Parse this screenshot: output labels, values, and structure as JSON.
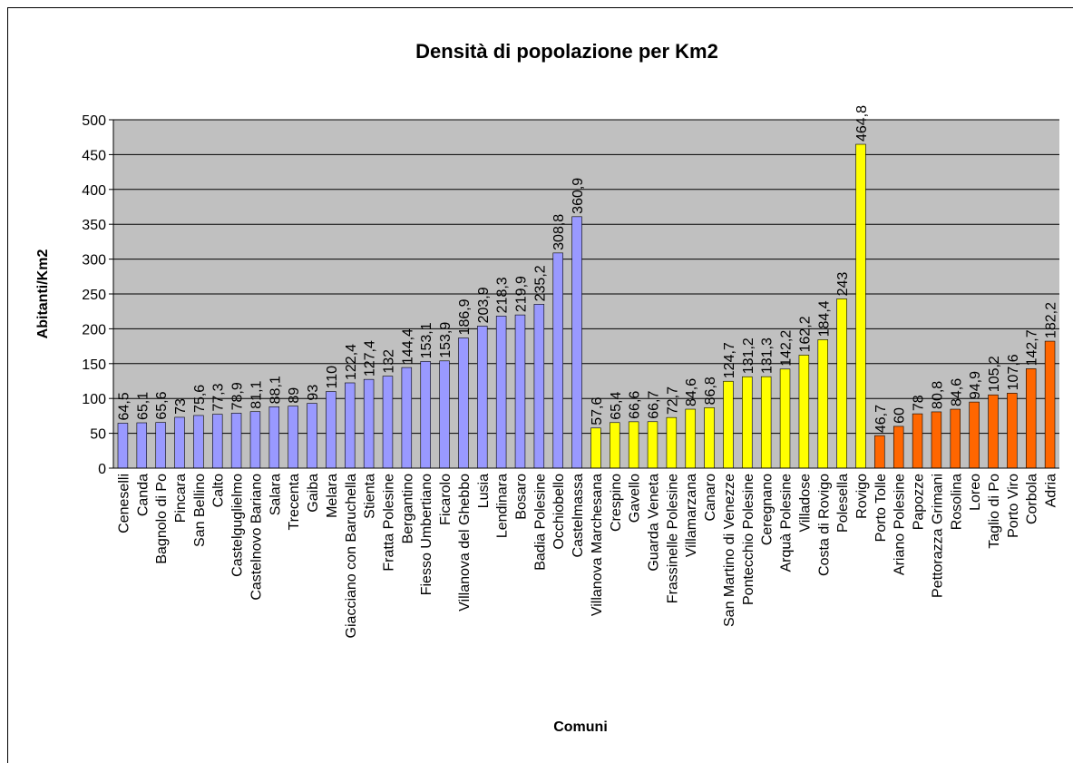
{
  "chart_data": {
    "type": "bar",
    "title": "Densità di popolazione per Km2",
    "y_label": "Abitanti/Km2",
    "x_label": "Comuni",
    "categories": [
      "Ceneselli",
      "Canda",
      "Bagnolo di Po",
      "Pincara",
      "San Bellino",
      "Calto",
      "Castelguglielmo",
      "Castelnovo Bariano",
      "Salara",
      "Trecenta",
      "Gaiba",
      "Melara",
      "Giacciano con Baruchella",
      "Stienta",
      "Fratta Polesine",
      "Bergantino",
      "Fiesso Umbertiano",
      "Ficarolo",
      "Villanova del Ghebbo",
      "Lusia",
      "Lendinara",
      "Bosaro",
      "Badia Polesine",
      "Occhiobello",
      "Castelmassa",
      "Villanova Marchesana",
      "Crespino",
      "Gavello",
      "Guarda Veneta",
      "Frassinelle Polesine",
      "Villamarzana",
      "Canaro",
      "San Martino di Venezze",
      "Pontecchio Polesine",
      "Ceregnano",
      "Arquà Polesine",
      "Villadose",
      "Costa di Rovigo",
      "Polesella",
      "Rovigo",
      "Porto Tolle",
      "Ariano Polesine",
      "Papozze",
      "Pettorazza Grimani",
      "Rosolina",
      "Loreo",
      "Taglio di Po",
      "Porto Viro",
      "Corbola",
      "Adria"
    ],
    "values": [
      64.5,
      65.1,
      65.6,
      73,
      75.6,
      77.3,
      78.9,
      81.1,
      88.1,
      89,
      93,
      110,
      122.4,
      127.4,
      132,
      144.4,
      153.1,
      153.9,
      186.9,
      203.9,
      218.3,
      219.9,
      235.2,
      308.8,
      360.9,
      57.6,
      65.4,
      66.6,
      66.7,
      72.7,
      84.6,
      86.8,
      124.7,
      131.2,
      131.3,
      142.2,
      162.2,
      184.4,
      243,
      464.8,
      46.7,
      60,
      78,
      80.8,
      84.6,
      94.9,
      105.2,
      107.6,
      142.7,
      182.2
    ],
    "value_labels": [
      "64,5",
      "65,1",
      "65,6",
      "73",
      "75,6",
      "77,3",
      "78,9",
      "81,1",
      "88,1",
      "89",
      "93",
      "110",
      "122,4",
      "127,4",
      "132",
      "144,4",
      "153,1",
      "153,9",
      "186,9",
      "203,9",
      "218,3",
      "219,9",
      "235,2",
      "308,8",
      "360,9",
      "57,6",
      "65,4",
      "66,6",
      "66,7",
      "72,7",
      "84,6",
      "86,8",
      "124,7",
      "131,2",
      "131,3",
      "142,2",
      "162,2",
      "184,4",
      "243",
      "464,8",
      "46,7",
      "60",
      "78",
      "80,8",
      "84,6",
      "94,9",
      "105,2",
      "107,6",
      "142,7",
      "182,2"
    ],
    "colors": [
      "#9999ff",
      "#9999ff",
      "#9999ff",
      "#9999ff",
      "#9999ff",
      "#9999ff",
      "#9999ff",
      "#9999ff",
      "#9999ff",
      "#9999ff",
      "#9999ff",
      "#9999ff",
      "#9999ff",
      "#9999ff",
      "#9999ff",
      "#9999ff",
      "#9999ff",
      "#9999ff",
      "#9999ff",
      "#9999ff",
      "#9999ff",
      "#9999ff",
      "#9999ff",
      "#9999ff",
      "#9999ff",
      "#ffff00",
      "#ffff00",
      "#ffff00",
      "#ffff00",
      "#ffff00",
      "#ffff00",
      "#ffff00",
      "#ffff00",
      "#ffff00",
      "#ffff00",
      "#ffff00",
      "#ffff00",
      "#ffff00",
      "#ffff00",
      "#ffff00",
      "#ff6600",
      "#ff6600",
      "#ff6600",
      "#ff6600",
      "#ff6600",
      "#ff6600",
      "#ff6600",
      "#ff6600",
      "#ff6600",
      "#ff6600"
    ],
    "ylim": [
      0,
      500
    ],
    "yticks": [
      0,
      50,
      100,
      150,
      200,
      250,
      300,
      350,
      400,
      450,
      500
    ],
    "grid": true
  }
}
